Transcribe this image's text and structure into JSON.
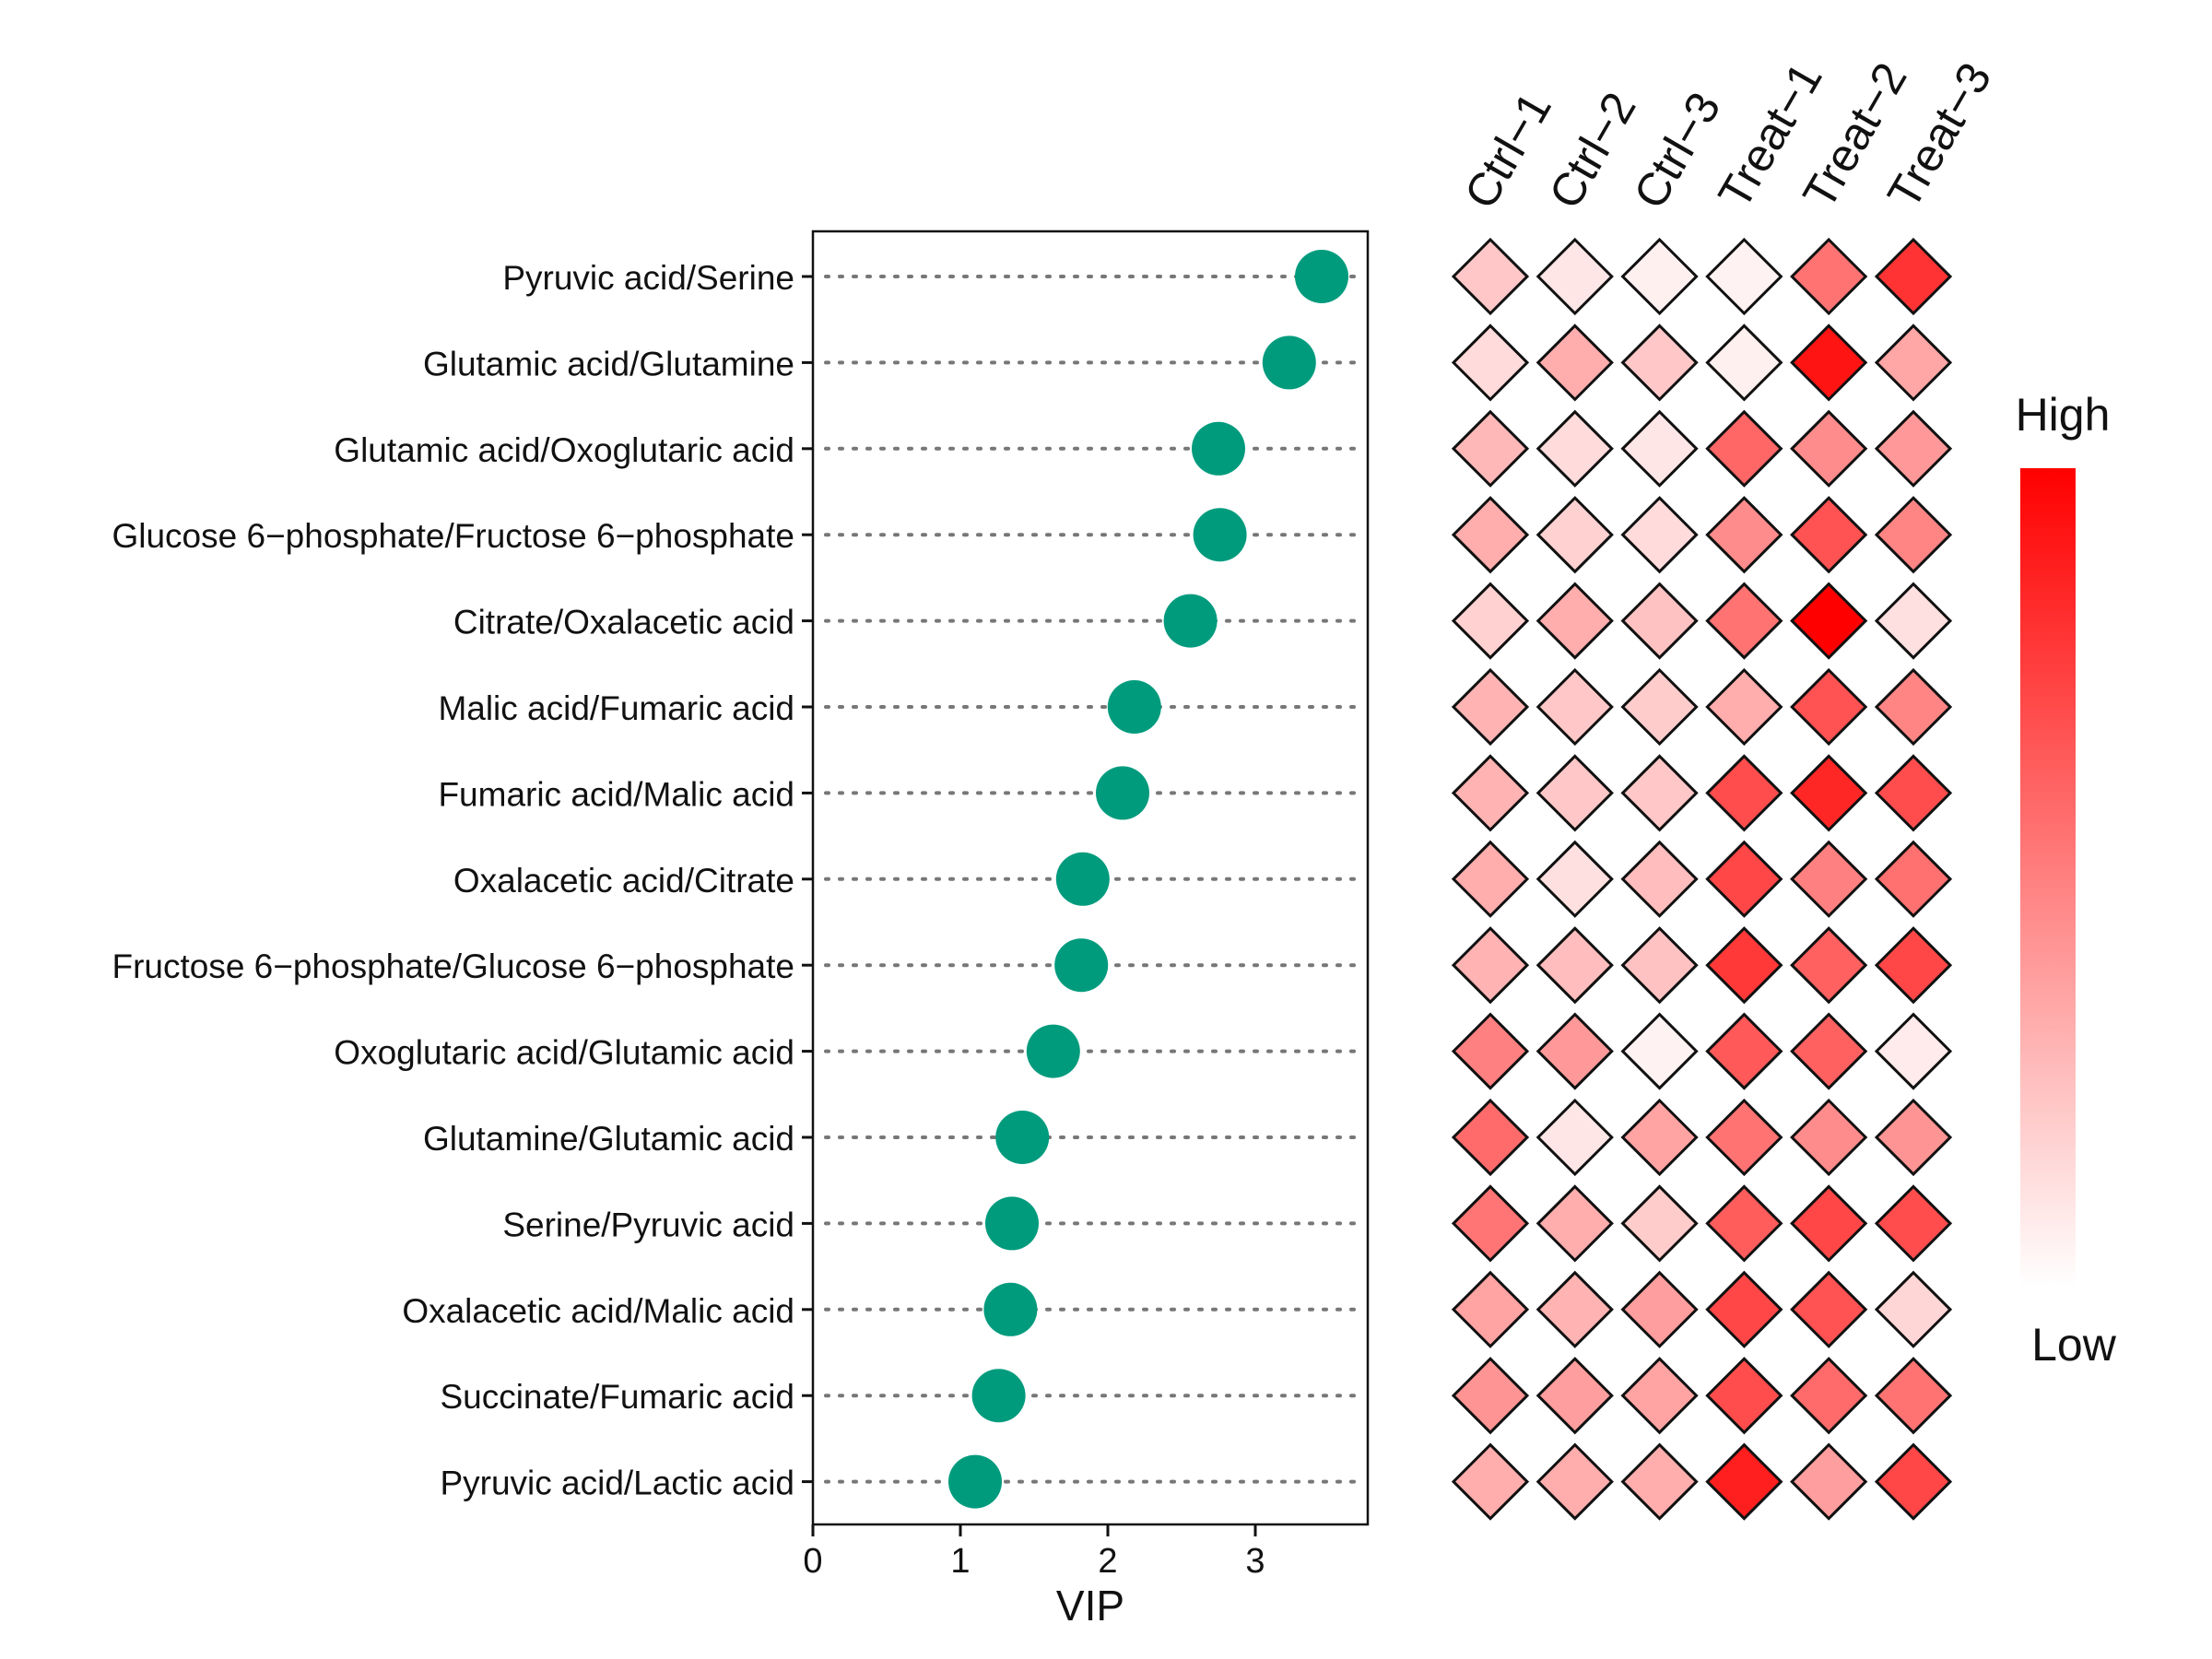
{
  "chart_data": [
    {
      "type": "scatter",
      "xlabel": "VIP",
      "ylabel": "",
      "xlim": [
        0,
        3.8
      ],
      "xticks": [
        0,
        1,
        2,
        3
      ],
      "grid": "dotted horizontal guide per row",
      "point_color": "#009B7D",
      "categories": [
        "Pyruvic acid/Serine",
        "Glutamic acid/Glutamine",
        "Glutamic acid/Oxoglutaric acid",
        "Glucose 6−phosphate/Fructose 6−phosphate",
        "Citrate/Oxalacetic acid",
        "Malic acid/Fumaric acid",
        "Fumaric acid/Malic acid",
        "Oxalacetic acid/Citrate",
        "Fructose 6−phosphate/Glucose 6−phosphate",
        "Oxoglutaric acid/Glutamic acid",
        "Glutamine/Glutamic acid",
        "Serine/Pyruvic acid",
        "Oxalacetic acid/Malic acid",
        "Succinate/Fumaric acid",
        "Pyruvic acid/Lactic acid"
      ],
      "values": [
        3.45,
        3.23,
        2.75,
        2.76,
        2.56,
        2.18,
        2.1,
        1.83,
        1.82,
        1.63,
        1.42,
        1.35,
        1.34,
        1.26,
        1.1
      ]
    },
    {
      "type": "heatmap",
      "marker": "diamond",
      "columns": [
        "Ctrl−1",
        "Ctrl−2",
        "Ctrl−3",
        "Treat−1",
        "Treat−2",
        "Treat−3"
      ],
      "rows_same_as_previous": true,
      "scale_min_label": "Low",
      "scale_max_label": "High",
      "color_low": "#FFFFFF",
      "color_high": "#FF0000",
      "values": [
        [
          0.22,
          0.1,
          0.06,
          0.05,
          0.55,
          0.8
        ],
        [
          0.14,
          0.32,
          0.22,
          0.06,
          0.92,
          0.35
        ],
        [
          0.28,
          0.14,
          0.1,
          0.6,
          0.45,
          0.4
        ],
        [
          0.32,
          0.18,
          0.14,
          0.45,
          0.68,
          0.48
        ],
        [
          0.18,
          0.32,
          0.24,
          0.55,
          1.0,
          0.12
        ],
        [
          0.3,
          0.22,
          0.2,
          0.32,
          0.68,
          0.48
        ],
        [
          0.3,
          0.22,
          0.22,
          0.7,
          0.85,
          0.7
        ],
        [
          0.32,
          0.12,
          0.26,
          0.72,
          0.5,
          0.56
        ],
        [
          0.3,
          0.26,
          0.24,
          0.78,
          0.62,
          0.72
        ],
        [
          0.5,
          0.4,
          0.05,
          0.65,
          0.62,
          0.08
        ],
        [
          0.58,
          0.1,
          0.36,
          0.55,
          0.45,
          0.42
        ],
        [
          0.54,
          0.32,
          0.2,
          0.64,
          0.72,
          0.7
        ],
        [
          0.36,
          0.3,
          0.38,
          0.72,
          0.68,
          0.16
        ],
        [
          0.42,
          0.38,
          0.36,
          0.7,
          0.58,
          0.55
        ],
        [
          0.32,
          0.32,
          0.32,
          0.88,
          0.38,
          0.72
        ]
      ]
    }
  ]
}
